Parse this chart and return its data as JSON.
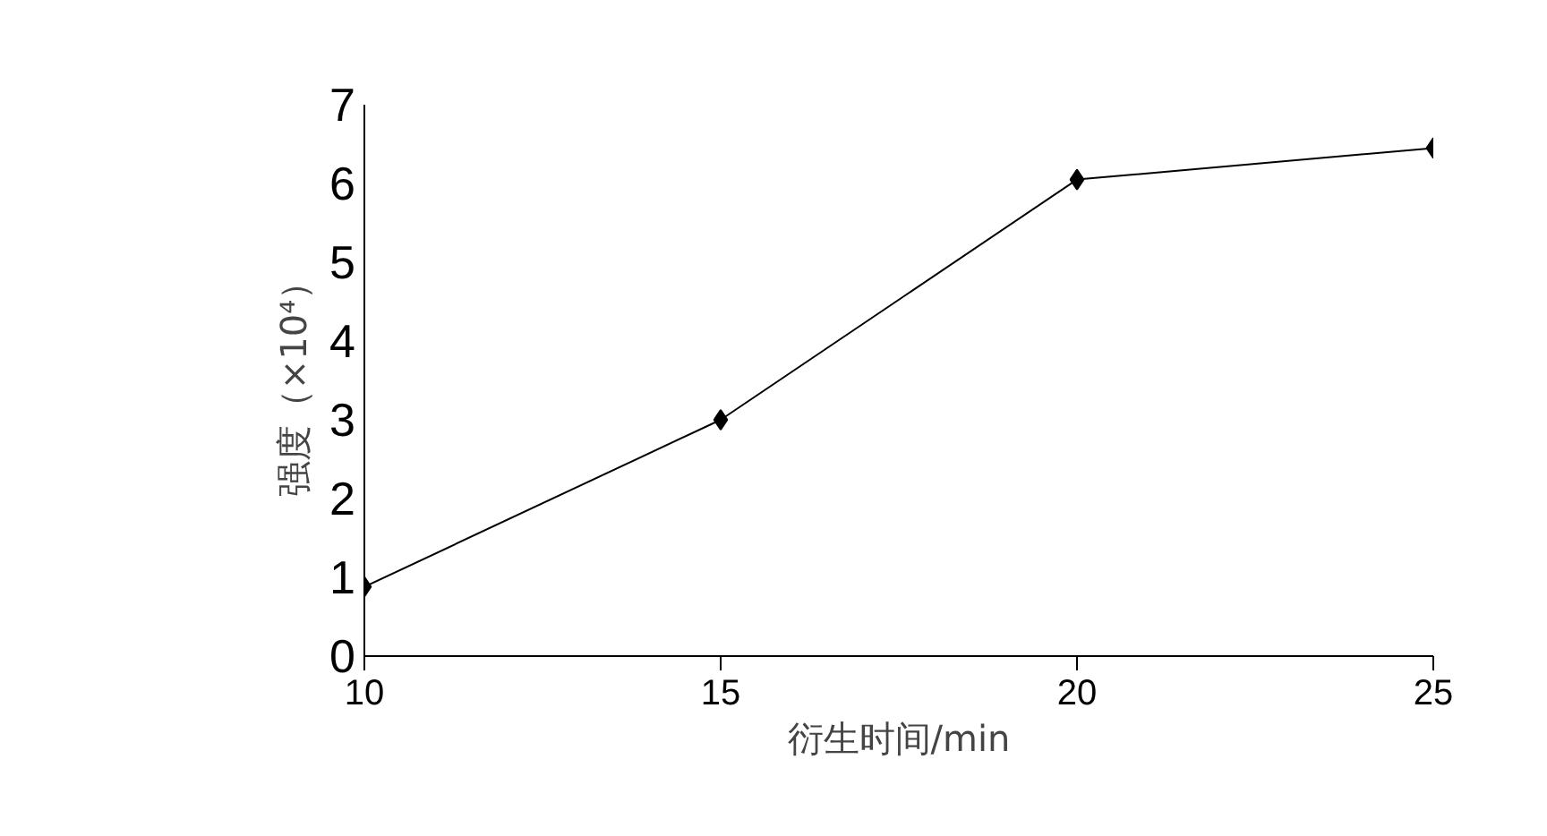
{
  "chart_data": {
    "type": "line",
    "xlabel": "衍生时间/min",
    "ylabel": "强度（×10⁴）",
    "x": [
      10,
      15,
      20,
      25
    ],
    "series": [
      {
        "color": "#000000",
        "values": [
          0.88,
          3.0,
          6.05,
          6.45
        ]
      }
    ],
    "xlim": [
      10,
      25
    ],
    "xticks": [
      10,
      15,
      20,
      25
    ],
    "ylim": [
      0,
      7
    ],
    "yticks": [
      0,
      1,
      2,
      3,
      4,
      5,
      6,
      7
    ],
    "marker": "diamond",
    "line_style": "solid",
    "grid": false
  }
}
